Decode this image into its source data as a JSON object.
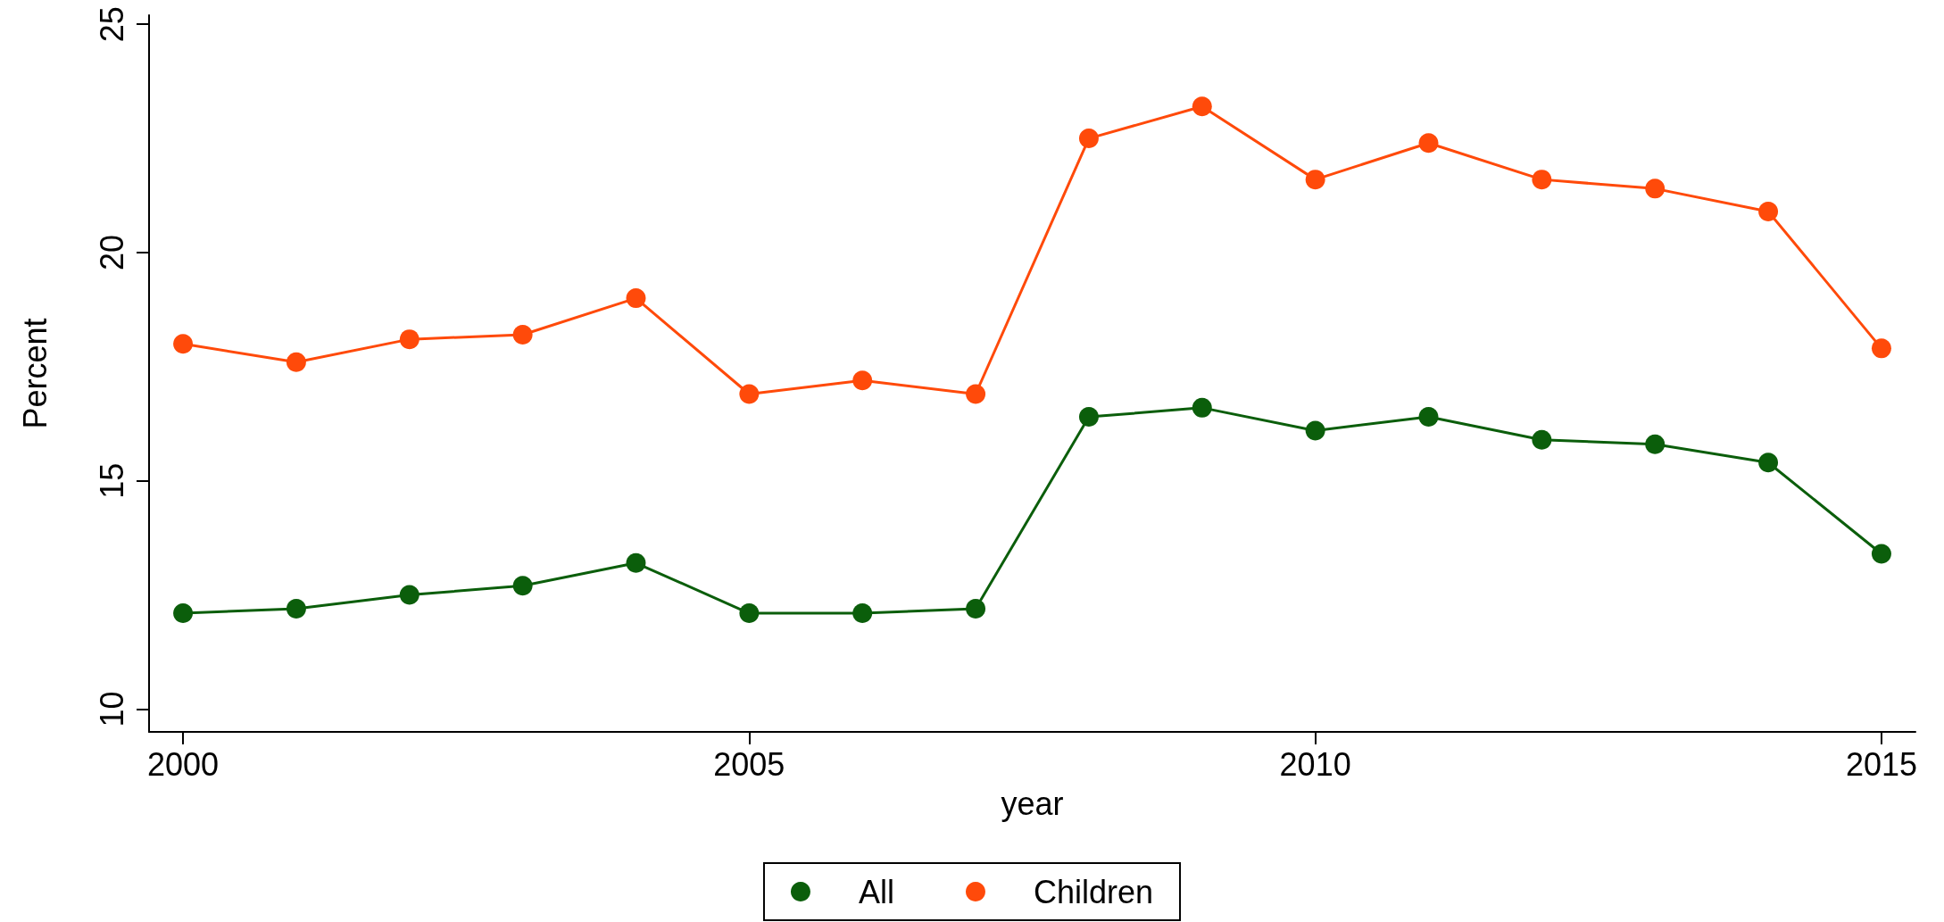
{
  "chart_data": {
    "type": "line",
    "xlabel": "year",
    "ylabel": "Percent",
    "x": [
      2000,
      2001,
      2002,
      2003,
      2004,
      2005,
      2006,
      2007,
      2008,
      2009,
      2010,
      2011,
      2012,
      2013,
      2014,
      2015
    ],
    "series": [
      {
        "name": "All",
        "color": "#0b5e0b",
        "values": [
          12.1,
          12.2,
          12.5,
          12.7,
          13.2,
          12.1,
          12.1,
          12.2,
          16.4,
          16.6,
          16.1,
          16.4,
          15.9,
          15.8,
          15.4,
          13.4
        ]
      },
      {
        "name": "Children",
        "color": "#ff4a0a",
        "values": [
          18.0,
          17.6,
          18.1,
          18.2,
          19.0,
          16.9,
          17.2,
          16.9,
          22.5,
          23.2,
          21.6,
          22.4,
          21.6,
          21.4,
          20.9,
          17.9
        ]
      }
    ],
    "xlim": [
      1999.7,
      2015.3
    ],
    "xticks": [
      2000,
      2005,
      2010,
      2015
    ],
    "ylim": [
      9.5,
      25.2
    ],
    "yticks": [
      10,
      15,
      20,
      25
    ],
    "grid": false,
    "legend": "bottom",
    "marker": "circle",
    "line_style": "solid"
  }
}
